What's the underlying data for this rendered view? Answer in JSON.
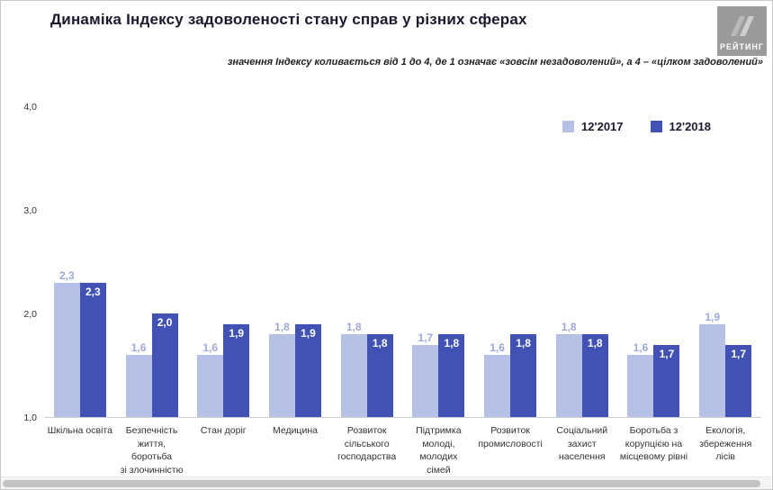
{
  "header": {
    "title": "Динаміка Індексу задоволеності стану справ у різних сферах",
    "subtitle": "значення Індексу коливається від 1 до 4, де 1 означає «зовсім незадоволений», а 4 – «цілком задоволений»",
    "logo_text": "РЕЙТИНГ"
  },
  "chart_data": {
    "type": "bar",
    "title": "Динаміка Індексу задоволеності стану справ у різних сферах",
    "subtitle": "значення Індексу коливається від 1 до 4, де 1 означає «зовсім незадоволений», а 4 – «цілком задоволений»",
    "ylim": [
      1.0,
      4.0
    ],
    "yticks": [
      {
        "label": "4,0",
        "value": 4.0
      },
      {
        "label": "3,0",
        "value": 3.0
      },
      {
        "label": "2,0",
        "value": 2.0
      },
      {
        "label": "1,0",
        "value": 1.0
      }
    ],
    "grid": false,
    "legend_position": "top-right",
    "categories": [
      "Шкільна освіта",
      "Безпечність\nжиття, боротьба\nзі злочинністю",
      "Стан доріг",
      "Медицина",
      "Розвиток\nсільського\nгосподарства",
      "Підтримка\nмолоді, молодих\nсімей",
      "Розвиток\nпромисловості",
      "Соціальний\nзахист\nнаселення",
      "Боротьба з\nкорупцією на\nмісцевому рівні",
      "Екологія,\nзбереження лісів"
    ],
    "series": [
      {
        "name": "12'2017",
        "color": "#b7c0e5",
        "label_color": "#9fa9d8",
        "label_position": "above",
        "values": [
          2.3,
          1.6,
          1.6,
          1.8,
          1.8,
          1.7,
          1.6,
          1.8,
          1.6,
          1.9
        ],
        "labels": [
          "2,3",
          "1,6",
          "1,6",
          "1,8",
          "1,8",
          "1,7",
          "1,6",
          "1,8",
          "1,6",
          "1,9"
        ]
      },
      {
        "name": "12'2018",
        "color": "#4152b4",
        "label_color": "#ffffff",
        "label_position": "inside",
        "values": [
          2.3,
          2.0,
          1.9,
          1.9,
          1.8,
          1.8,
          1.8,
          1.8,
          1.7,
          1.7
        ],
        "labels": [
          "2,3",
          "2,0",
          "1,9",
          "1,9",
          "1,8",
          "1,8",
          "1,8",
          "1,8",
          "1,7",
          "1,7"
        ]
      }
    ]
  }
}
